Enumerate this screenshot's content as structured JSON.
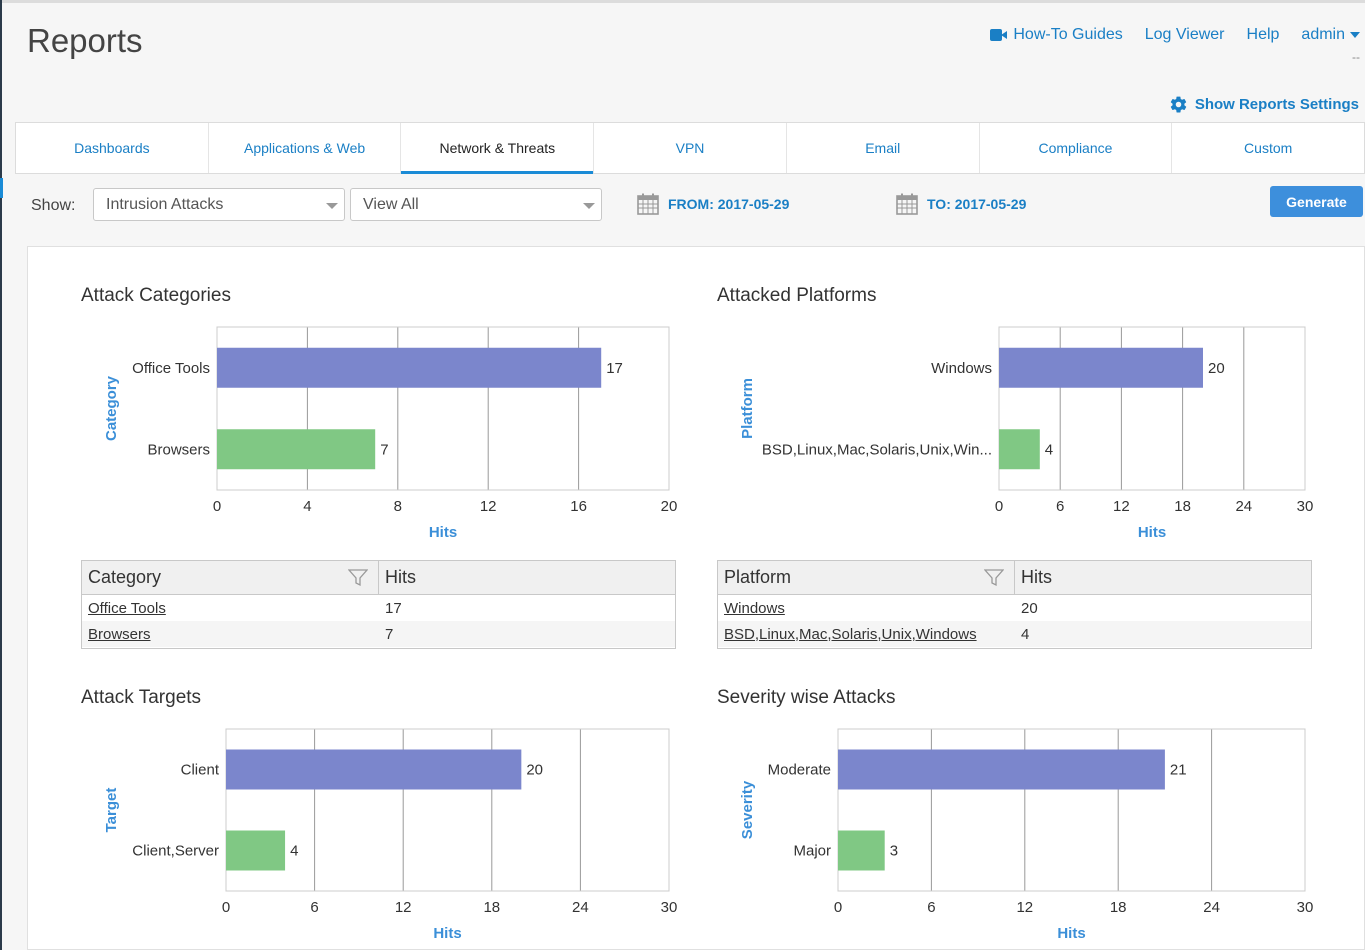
{
  "header": {
    "title": "Reports",
    "links": {
      "howto": "How-To Guides",
      "logviewer": "Log Viewer",
      "help": "Help",
      "admin": "admin",
      "admin_sub": "--"
    },
    "settings_label": "Show Reports Settings"
  },
  "tabs": [
    "Dashboards",
    "Applications & Web",
    "Network & Threats",
    "VPN",
    "Email",
    "Compliance",
    "Custom"
  ],
  "active_tab": "Network & Threats",
  "filters": {
    "show_label": "Show:",
    "select1_value": "Intrusion Attacks",
    "select2_value": "View All",
    "from_label": "FROM: 2017-05-29",
    "to_label": "TO: 2017-05-29",
    "generate_label": "Generate"
  },
  "panels": {
    "attack_categories": {
      "title": "Attack Categories"
    },
    "attacked_platforms": {
      "title": "Attacked Platforms"
    },
    "attack_targets": {
      "title": "Attack Targets"
    },
    "severity_attacks": {
      "title": "Severity wise Attacks"
    }
  },
  "tables": {
    "categories": {
      "col1": "Category",
      "col2": "Hits",
      "rows": [
        {
          "name": "Office Tools",
          "hits": "17"
        },
        {
          "name": "Browsers",
          "hits": "7"
        }
      ]
    },
    "platforms": {
      "col1": "Platform",
      "col2": "Hits",
      "rows": [
        {
          "name": "Windows",
          "hits": "20"
        },
        {
          "name": "BSD,Linux,Mac,Solaris,Unix,Windows",
          "hits": "4"
        }
      ]
    }
  },
  "chart_data": [
    {
      "type": "bar",
      "orientation": "horizontal",
      "title": "Attack Categories",
      "categories": [
        "Office Tools",
        "Browsers"
      ],
      "values": [
        17,
        7
      ],
      "colors": [
        "#7b86cc",
        "#80c884"
      ],
      "xlabel": "Hits",
      "ylabel": "Category",
      "xlim": [
        0,
        20
      ],
      "ticks": [
        0,
        4,
        8,
        12,
        16,
        20
      ],
      "grid": true
    },
    {
      "type": "bar",
      "orientation": "horizontal",
      "title": "Attacked Platforms",
      "categories": [
        "Windows",
        "BSD,Linux,Mac,Solaris,Unix,Win..."
      ],
      "values": [
        20,
        4
      ],
      "colors": [
        "#7b86cc",
        "#80c884"
      ],
      "xlabel": "Hits",
      "ylabel": "Platform",
      "xlim": [
        0,
        30
      ],
      "ticks": [
        0,
        6,
        12,
        18,
        24,
        30
      ],
      "grid": true
    },
    {
      "type": "bar",
      "orientation": "horizontal",
      "title": "Attack Targets",
      "categories": [
        "Client",
        "Client,Server"
      ],
      "values": [
        20,
        4
      ],
      "colors": [
        "#7b86cc",
        "#80c884"
      ],
      "xlabel": "Hits",
      "ylabel": "Target",
      "xlim": [
        0,
        30
      ],
      "ticks": [
        0,
        6,
        12,
        18,
        24,
        30
      ],
      "grid": true
    },
    {
      "type": "bar",
      "orientation": "horizontal",
      "title": "Severity wise Attacks",
      "categories": [
        "Moderate",
        "Major"
      ],
      "values": [
        21,
        3
      ],
      "colors": [
        "#7b86cc",
        "#80c884"
      ],
      "xlabel": "Hits",
      "ylabel": "Severity",
      "xlim": [
        0,
        30
      ],
      "ticks": [
        0,
        6,
        12,
        18,
        24,
        30
      ],
      "grid": true
    }
  ]
}
